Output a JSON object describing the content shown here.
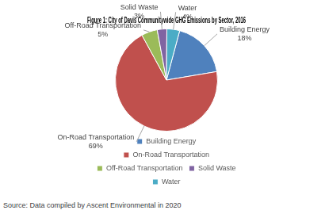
{
  "chart_data": {
    "type": "pie",
    "title": "Figure 1: City of Davis Communitywide GHG Emissions by Sector, 2016",
    "categories": [
      "Building Energy",
      "On-Road Transportation",
      "Off-Road Transportation",
      "Solid Waste",
      "Water"
    ],
    "values": [
      18,
      69,
      5,
      3,
      4
    ],
    "value_labels": [
      "18%",
      "69%",
      "5%",
      "3%",
      "4%"
    ],
    "colors": [
      "#4f81bd",
      "#c0504d",
      "#9bbb59",
      "#8064a2",
      "#4bacc6"
    ],
    "data_labels": true,
    "legend": "bottom",
    "annotations": [
      "Source: Data compiled by Ascent Environmental in 2020"
    ]
  }
}
